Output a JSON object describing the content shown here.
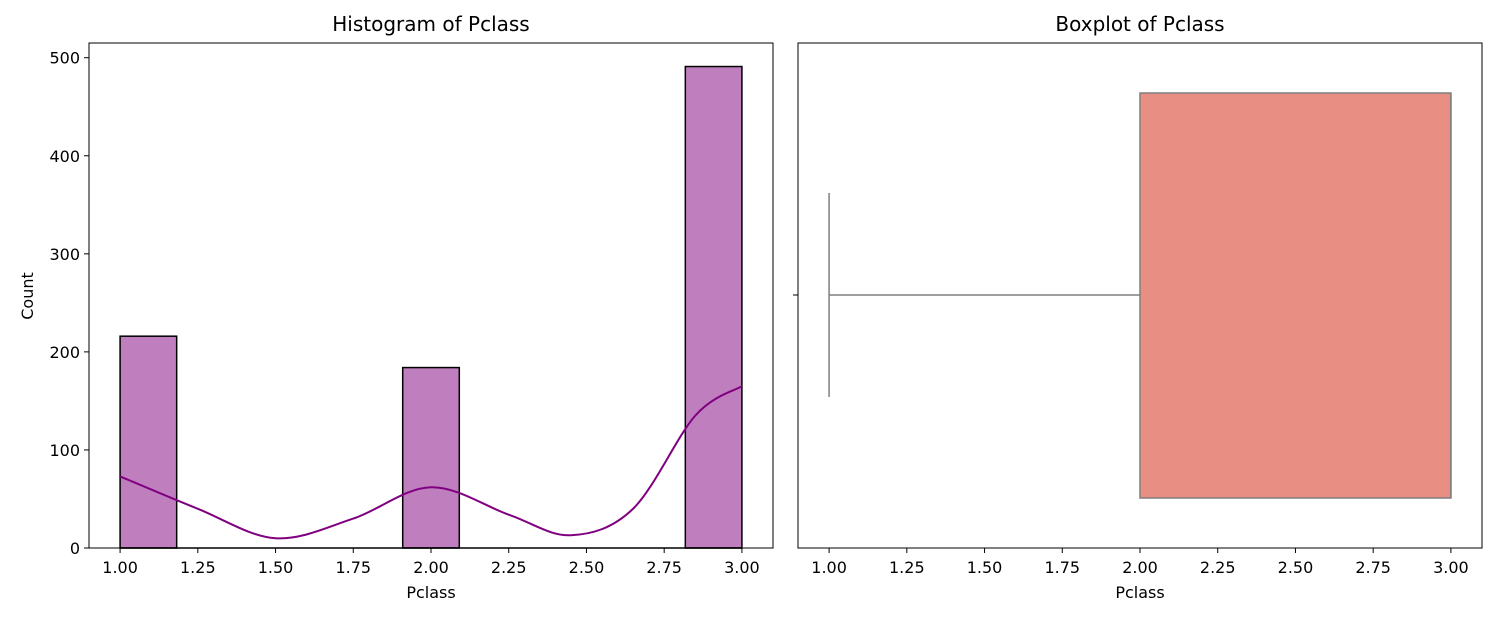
{
  "chart_data": [
    {
      "type": "bar",
      "title": "Histogram of Pclass",
      "xlabel": "Pclass",
      "ylabel": "Count",
      "xlim": [
        0.9,
        3.1
      ],
      "ylim": [
        0,
        515
      ],
      "xticks": [
        "1.00",
        "1.25",
        "1.50",
        "1.75",
        "2.00",
        "2.25",
        "2.50",
        "2.75",
        "3.00"
      ],
      "yticks": [
        "0",
        "100",
        "200",
        "300",
        "400",
        "500"
      ],
      "bins": [
        {
          "x0": 1.0,
          "x1": 1.182,
          "count": 216
        },
        {
          "x0": 1.909,
          "x1": 2.091,
          "count": 184
        },
        {
          "x0": 2.818,
          "x1": 3.0,
          "count": 491
        }
      ],
      "kde": {
        "x": [
          1.0,
          1.25,
          1.5,
          1.75,
          2.0,
          2.25,
          2.45,
          2.65,
          2.85,
          3.0
        ],
        "y": [
          73,
          40,
          10,
          30,
          62,
          34,
          13,
          40,
          135,
          165
        ]
      },
      "bar_color": "#bf7fbf",
      "kde_color": "#800080",
      "grid": false
    },
    {
      "type": "boxplot",
      "title": "Boxplot of Pclass",
      "xlabel": "Pclass",
      "xlim": [
        0.9,
        3.1
      ],
      "xticks": [
        "1.00",
        "1.25",
        "1.50",
        "1.75",
        "2.00",
        "2.25",
        "2.50",
        "2.75",
        "3.00"
      ],
      "stats": {
        "whislo": 1.0,
        "q1": 2.0,
        "median": 3.0,
        "q3": 3.0,
        "whishi": 3.0
      },
      "box_color": "#e88e83",
      "line_color": "#7f7f7f",
      "grid": false
    }
  ]
}
